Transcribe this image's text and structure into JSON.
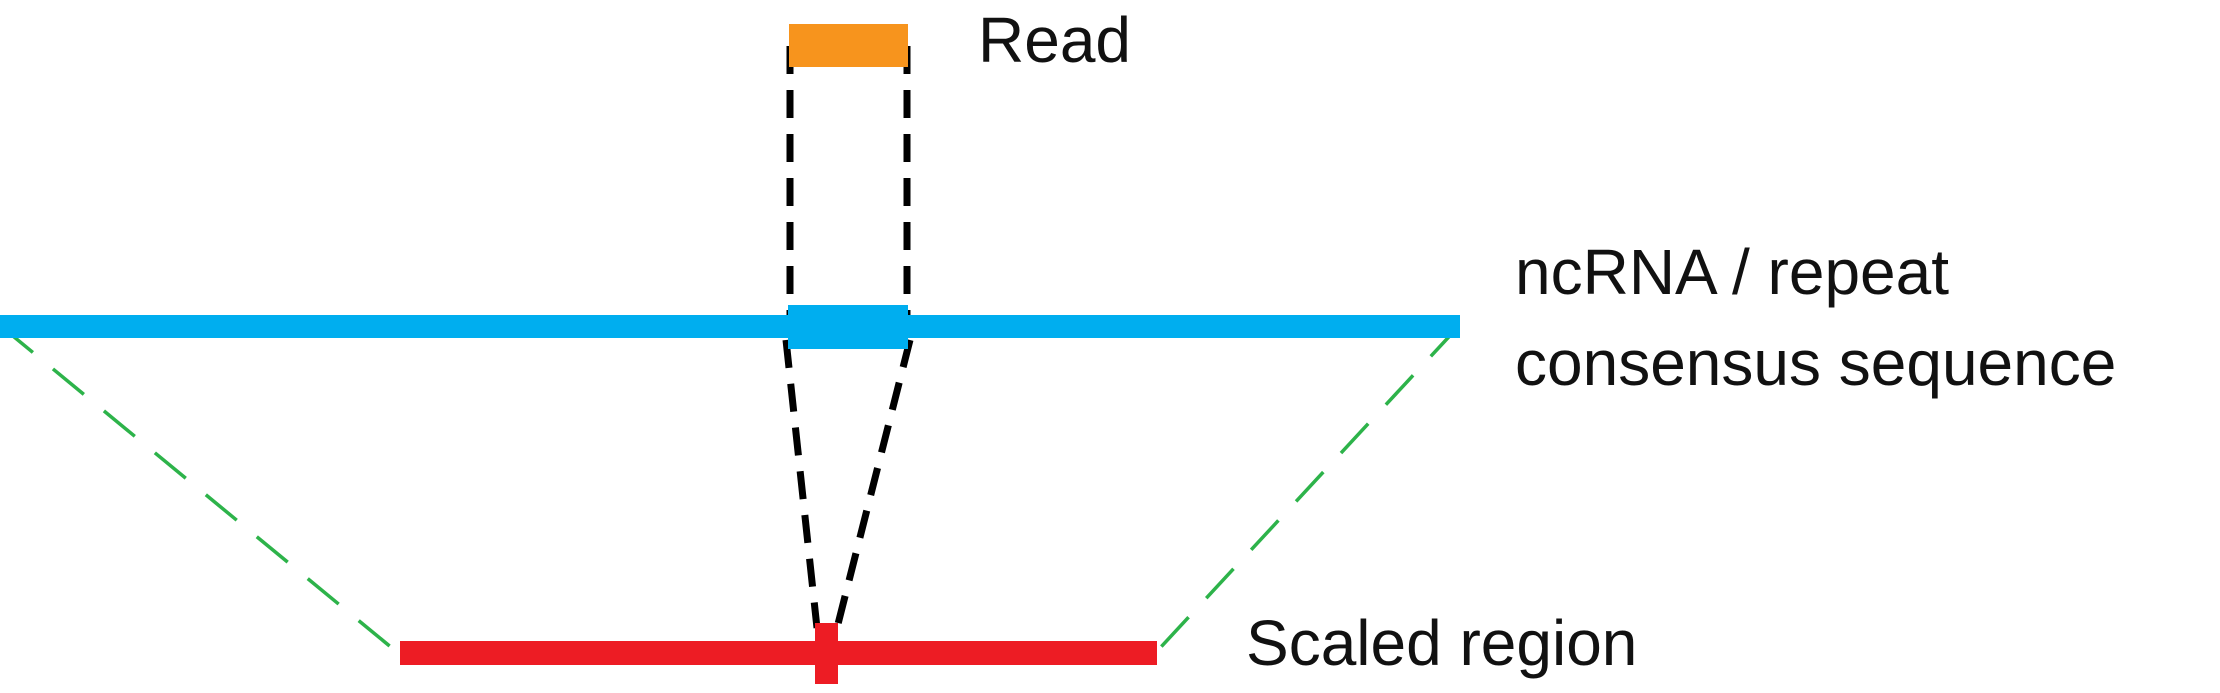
{
  "labels": {
    "read": "Read",
    "consensus_line1": "ncRNA / repeat",
    "consensus_line2": "consensus sequence",
    "scaled_region": "Scaled region"
  },
  "colors": {
    "read": "#F7941D",
    "consensus": "#00AEEF",
    "scaled_region": "#ED1C24",
    "read_projection": "#000000",
    "region_projection": "#2DB34A",
    "text": "#111111",
    "background": "#FFFFFF"
  }
}
